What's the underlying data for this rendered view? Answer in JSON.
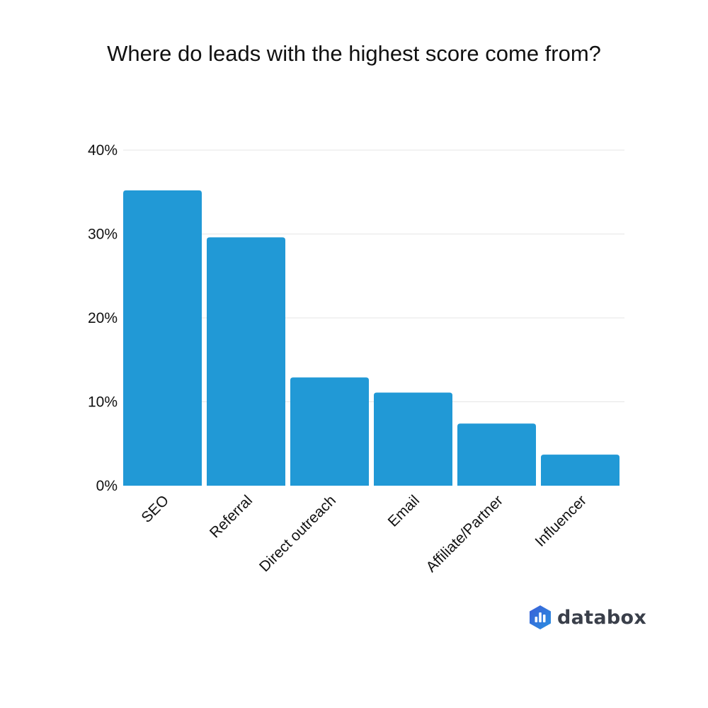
{
  "chart_data": {
    "type": "bar",
    "title": "Where do leads with the highest score come from?",
    "categories": [
      "SEO",
      "Referral",
      "Direct outreach",
      "Email",
      "Affiliate/Partner",
      "Influencer"
    ],
    "values": [
      35.2,
      29.6,
      12.9,
      11.1,
      7.4,
      3.7
    ],
    "value_unit": "%",
    "ylim": [
      0,
      40
    ],
    "yticks": [
      {
        "value": 0,
        "label": "0%"
      },
      {
        "value": 10,
        "label": "10%"
      },
      {
        "value": 20,
        "label": "20%"
      },
      {
        "value": 30,
        "label": "30%"
      },
      {
        "value": 40,
        "label": "40%"
      }
    ],
    "grid": true,
    "legend": "none",
    "bar_color": "#2199d6",
    "grid_color": "#e6e6e6"
  },
  "brand": {
    "name": "databox",
    "logo_icon": "databox-logo-icon"
  }
}
